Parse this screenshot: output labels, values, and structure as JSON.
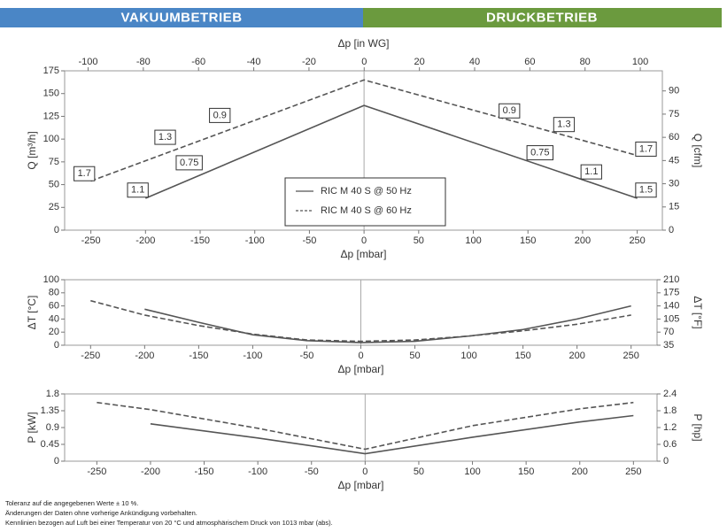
{
  "header": {
    "left": "VAKUUMBETRIEB",
    "right": "DRUCKBETRIEB"
  },
  "chart_data": [
    {
      "type": "line",
      "xlabel": "Δp [mbar]",
      "x2label": "Δp [in WG]",
      "ylabel": "Q [m³/h]",
      "y2label": "Q [cfm]",
      "xlim": [
        -274,
        273
      ],
      "xticks": [
        -250,
        -200,
        -150,
        -100,
        -50,
        0,
        50,
        100,
        150,
        200,
        250
      ],
      "x2lim": [
        -108.5,
        108
      ],
      "x2ticks": [
        -100,
        -80,
        -60,
        -40,
        -20,
        0,
        20,
        40,
        60,
        80,
        100
      ],
      "ylim": [
        0,
        175
      ],
      "yticks": [
        0,
        25,
        50,
        75,
        100,
        125,
        150,
        175
      ],
      "y2lim": [
        0,
        103
      ],
      "y2ticks": [
        0,
        15,
        30,
        45,
        60,
        75,
        90
      ],
      "legend": "lower center",
      "series": [
        {
          "name": "RIC M 40 S @ 50 Hz",
          "color": "#555555",
          "style": "solid",
          "x": [
            -200,
            0,
            250
          ],
          "values": [
            35,
            137,
            35
          ]
        },
        {
          "name": "RIC M 40 S @ 60 Hz",
          "color": "#555555",
          "style": "dashed",
          "x": [
            -250,
            0,
            250
          ],
          "values": [
            54,
            165,
            82
          ]
        }
      ],
      "annotations": [
        {
          "text": "1.7",
          "x": -256,
          "y": 62
        },
        {
          "text": "1.3",
          "x": -182,
          "y": 102
        },
        {
          "text": "0.9",
          "x": -132,
          "y": 126
        },
        {
          "text": "0.9",
          "x": 133,
          "y": 131
        },
        {
          "text": "1.3",
          "x": 183,
          "y": 116
        },
        {
          "text": "1.7",
          "x": 258,
          "y": 89
        },
        {
          "text": "1.1",
          "x": -207,
          "y": 44
        },
        {
          "text": "0.75",
          "x": -160,
          "y": 74
        },
        {
          "text": "0.75",
          "x": 161,
          "y": 85
        },
        {
          "text": "1.1",
          "x": 208,
          "y": 64
        },
        {
          "text": "1.5",
          "x": 258,
          "y": 44
        }
      ]
    },
    {
      "type": "line",
      "xlabel": "Δp [mbar]",
      "ylabel": "ΔT [°C]",
      "y2label": "ΔT [°F]",
      "xlim": [
        -274,
        274
      ],
      "xticks": [
        -250,
        -200,
        -150,
        -100,
        -50,
        0,
        50,
        100,
        150,
        200,
        250
      ],
      "ylim": [
        0,
        100
      ],
      "yticks": [
        0,
        20,
        40,
        60,
        80,
        100
      ],
      "y2lim": [
        35,
        210
      ],
      "y2ticks": [
        35,
        70,
        105,
        140,
        175,
        210
      ],
      "series": [
        {
          "color": "#555555",
          "style": "solid",
          "x": [
            -200,
            -150,
            -100,
            -50,
            0,
            50,
            100,
            150,
            200,
            250
          ],
          "values": [
            55,
            35,
            16,
            7,
            4,
            6,
            14,
            24,
            40,
            60
          ]
        },
        {
          "color": "#555555",
          "style": "dashed",
          "x": [
            -250,
            -200,
            -150,
            -100,
            -50,
            0,
            50,
            100,
            150,
            200,
            250
          ],
          "values": [
            68,
            46,
            30,
            17,
            8,
            6,
            8,
            14,
            22,
            32,
            46
          ]
        }
      ]
    },
    {
      "type": "line",
      "xlabel": "Δp [mbar]",
      "ylabel": "P [kW]",
      "y2label": "P [hp]",
      "xlim": [
        -280,
        272
      ],
      "xticks": [
        -250,
        -200,
        -150,
        -100,
        -50,
        0,
        50,
        100,
        150,
        200,
        250
      ],
      "ylim": [
        0,
        1.8
      ],
      "yticks": [
        0,
        0.45,
        0.9,
        1.35,
        1.8
      ],
      "y2lim": [
        0,
        2.4
      ],
      "y2ticks": [
        0,
        0.6,
        1.2,
        1.8,
        2.4
      ],
      "series": [
        {
          "color": "#555555",
          "style": "solid",
          "x": [
            -200,
            -100,
            0,
            100,
            200,
            250
          ],
          "values": [
            1.0,
            0.62,
            0.2,
            0.64,
            1.05,
            1.22
          ]
        },
        {
          "color": "#555555",
          "style": "dashed",
          "x": [
            -250,
            -200,
            -100,
            0,
            100,
            200,
            250
          ],
          "values": [
            1.57,
            1.38,
            0.88,
            0.32,
            0.95,
            1.4,
            1.57
          ]
        }
      ]
    }
  ],
  "footnotes": [
    "Toleranz auf die angegebenen Werte ± 10 %.",
    "Änderungen der Daten ohne vorherige Ankündigung vorbehalten.",
    "Kennlinien bezogen auf Luft bei einer Temperatur von 20 °C und atmosphärischem Druck von 1013 mbar (abs)."
  ]
}
